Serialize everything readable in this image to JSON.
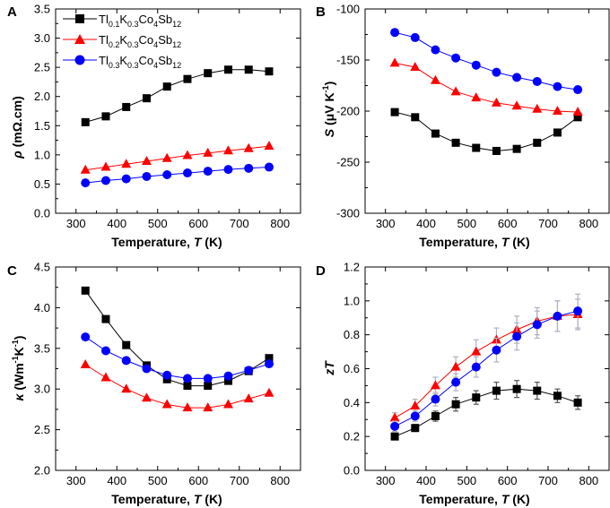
{
  "colors": {
    "s1": "#000000",
    "s2": "#ff0000",
    "s3": "#0000ff",
    "err": "#b0b0c0"
  },
  "legend": {
    "s1": {
      "base": "Tl",
      "sub1": "0.1",
      "mid": "K",
      "sub2": "0.3",
      "tail": "Co",
      "sub3": "4",
      "end": "Sb",
      "sub4": "12"
    },
    "s2": {
      "base": "Tl",
      "sub1": "0.2",
      "mid": "K",
      "sub2": "0.3",
      "tail": "Co",
      "sub3": "4",
      "end": "Sb",
      "sub4": "12"
    },
    "s3": {
      "base": "Tl",
      "sub1": "0.3",
      "mid": "K",
      "sub2": "0.3",
      "tail": "Co",
      "sub3": "4",
      "end": "Sb",
      "sub4": "12"
    }
  },
  "xlabel": {
    "main": "Temperature, ",
    "italic": "T",
    "unit": " (K)"
  },
  "chart_data": [
    {
      "type": "line",
      "panel": "A",
      "ylabel": {
        "sym": "ρ",
        "unit": " (mΩ.cm)"
      },
      "xlim": [
        250,
        850
      ],
      "ylim": [
        0.0,
        3.5
      ],
      "xticks": [
        300,
        400,
        500,
        600,
        700,
        800
      ],
      "yticks": [
        0.0,
        0.5,
        1.0,
        1.5,
        2.0,
        2.5,
        3.0,
        3.5
      ],
      "ytick_labels": [
        "0.0",
        "0.5",
        "1.0",
        "1.5",
        "2.0",
        "2.5",
        "3.0",
        "3.5"
      ],
      "x": [
        323,
        373,
        423,
        473,
        523,
        573,
        623,
        673,
        723,
        773
      ],
      "series": [
        {
          "name": "s1",
          "marker": "square",
          "values": [
            1.56,
            1.66,
            1.82,
            1.97,
            2.17,
            2.3,
            2.4,
            2.46,
            2.46,
            2.43
          ]
        },
        {
          "name": "s2",
          "marker": "triangle",
          "values": [
            0.74,
            0.79,
            0.84,
            0.89,
            0.94,
            0.99,
            1.03,
            1.07,
            1.11,
            1.15
          ]
        },
        {
          "name": "s3",
          "marker": "circle",
          "values": [
            0.52,
            0.56,
            0.59,
            0.63,
            0.66,
            0.69,
            0.72,
            0.75,
            0.77,
            0.79
          ]
        }
      ]
    },
    {
      "type": "line",
      "panel": "B",
      "ylabel": {
        "sym": "S",
        "unit": " (μV K",
        "sup": "-1",
        "close": ")"
      },
      "xlim": [
        250,
        850
      ],
      "ylim": [
        -300,
        -100
      ],
      "xticks": [
        300,
        400,
        500,
        600,
        700,
        800
      ],
      "yticks": [
        -300,
        -250,
        -200,
        -150,
        -100
      ],
      "ytick_labels": [
        "-300",
        "-250",
        "-200",
        "-150",
        "-100"
      ],
      "x": [
        323,
        373,
        423,
        473,
        523,
        573,
        623,
        673,
        723,
        773
      ],
      "series": [
        {
          "name": "s1",
          "marker": "square",
          "values": [
            -201,
            -206,
            -222,
            -231,
            -236,
            -239,
            -237,
            -231,
            -221,
            -206
          ]
        },
        {
          "name": "s2",
          "marker": "triangle",
          "values": [
            -153,
            -157,
            -170,
            -181,
            -187,
            -192,
            -195,
            -198,
            -200,
            -201
          ]
        },
        {
          "name": "s3",
          "marker": "circle",
          "values": [
            -123,
            -128,
            -140,
            -148,
            -155,
            -162,
            -167,
            -171,
            -176,
            -179
          ]
        }
      ]
    },
    {
      "type": "line",
      "panel": "C",
      "ylabel": {
        "sym": "κ",
        "unit": " (Wm",
        "sup": "-1",
        "mid": "K",
        "sup2": "-1",
        "close": ")"
      },
      "xlim": [
        250,
        850
      ],
      "ylim": [
        2.0,
        4.5
      ],
      "xticks": [
        300,
        400,
        500,
        600,
        700,
        800
      ],
      "yticks": [
        2.0,
        2.5,
        3.0,
        3.5,
        4.0,
        4.5
      ],
      "ytick_labels": [
        "2.0",
        "2.5",
        "3.0",
        "3.5",
        "4.0",
        "4.5"
      ],
      "x": [
        323,
        373,
        423,
        473,
        523,
        573,
        623,
        673,
        723,
        773
      ],
      "series": [
        {
          "name": "s1",
          "marker": "square",
          "values": [
            4.21,
            3.86,
            3.54,
            3.29,
            3.12,
            3.04,
            3.04,
            3.1,
            3.22,
            3.38
          ]
        },
        {
          "name": "s2",
          "marker": "triangle",
          "values": [
            3.3,
            3.14,
            3.0,
            2.89,
            2.81,
            2.77,
            2.77,
            2.81,
            2.88,
            2.95
          ]
        },
        {
          "name": "s3",
          "marker": "circle",
          "values": [
            3.64,
            3.47,
            3.35,
            3.25,
            3.17,
            3.13,
            3.13,
            3.16,
            3.23,
            3.31
          ]
        }
      ]
    },
    {
      "type": "line",
      "panel": "D",
      "ylabel": {
        "sym": "zT",
        "unit": ""
      },
      "xlim": [
        250,
        850
      ],
      "ylim": [
        0.0,
        1.2
      ],
      "xticks": [
        300,
        400,
        500,
        600,
        700,
        800
      ],
      "yticks": [
        0.0,
        0.2,
        0.4,
        0.6,
        0.8,
        1.0,
        1.2
      ],
      "ytick_labels": [
        "0.0",
        "0.2",
        "0.4",
        "0.6",
        "0.8",
        "1.0",
        "1.2"
      ],
      "x": [
        323,
        373,
        423,
        473,
        523,
        573,
        623,
        673,
        723,
        773
      ],
      "series": [
        {
          "name": "s1",
          "marker": "square",
          "values": [
            0.2,
            0.25,
            0.32,
            0.39,
            0.43,
            0.47,
            0.48,
            0.47,
            0.44,
            0.4
          ],
          "errors": [
            0.02,
            0.02,
            0.03,
            0.04,
            0.04,
            0.05,
            0.05,
            0.05,
            0.04,
            0.04
          ]
        },
        {
          "name": "s2",
          "marker": "triangle",
          "values": [
            0.31,
            0.38,
            0.5,
            0.61,
            0.7,
            0.77,
            0.83,
            0.88,
            0.91,
            0.92
          ],
          "errors": [
            0.03,
            0.04,
            0.05,
            0.06,
            0.07,
            0.07,
            0.08,
            0.08,
            0.09,
            0.09
          ]
        },
        {
          "name": "s3",
          "marker": "circle",
          "values": [
            0.26,
            0.32,
            0.42,
            0.52,
            0.61,
            0.71,
            0.79,
            0.86,
            0.91,
            0.94
          ],
          "errors": [
            0.03,
            0.03,
            0.04,
            0.05,
            0.06,
            0.07,
            0.08,
            0.08,
            0.09,
            0.1
          ]
        }
      ]
    }
  ]
}
